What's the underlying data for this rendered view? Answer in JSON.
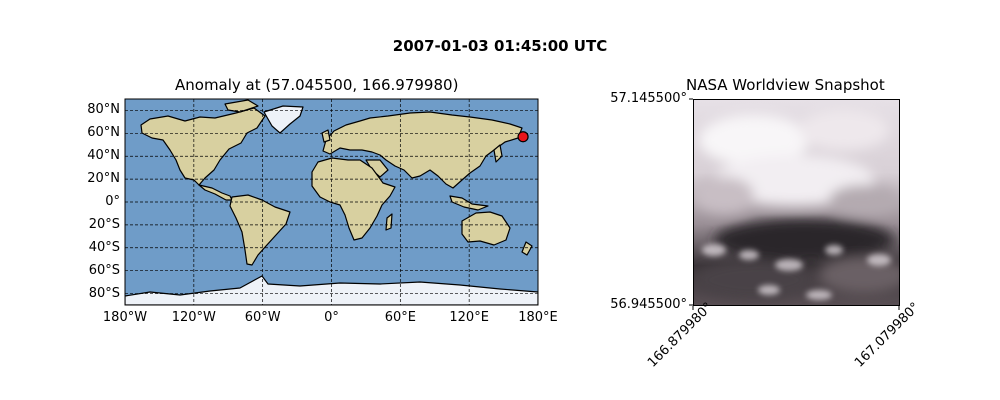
{
  "figure": {
    "suptitle": "2007-01-03 01:45:00 UTC"
  },
  "map": {
    "title": "Anomaly at (57.045500, 166.979980)",
    "lon_ticks": [
      "180°W",
      "120°W",
      "60°W",
      "0°",
      "60°E",
      "120°E",
      "180°E"
    ],
    "lat_ticks": [
      "80°N",
      "60°N",
      "40°N",
      "20°N",
      "0°",
      "20°S",
      "40°S",
      "60°S",
      "80°S"
    ],
    "marker": {
      "lat": 57.0455,
      "lon": 166.97998,
      "color": "#e8141c"
    },
    "colors": {
      "ocean": "#6f9cc8",
      "land": "#d8d0a0",
      "ice": "#eef2f8",
      "grid": "#000000"
    }
  },
  "snapshot": {
    "title": "NASA Worldview Snapshot",
    "y_top": "57.145500°",
    "y_bottom": "56.945500°",
    "x_left": "166.879980°",
    "x_right": "167.079980°"
  }
}
